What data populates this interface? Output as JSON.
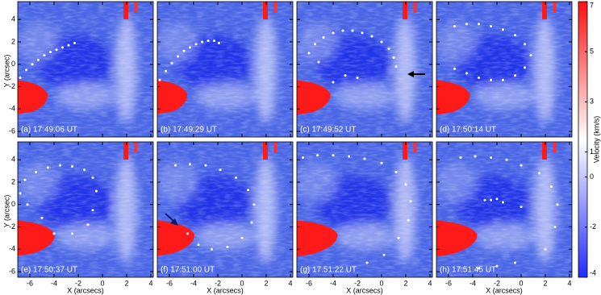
{
  "chart_data": {
    "type": "image",
    "x_label": "X (arcsecs)",
    "y_label": "Y (arcsec)",
    "xlim": [
      -7,
      4.2
    ],
    "ylim": [
      -6.5,
      5.6
    ],
    "xticks": [
      -6,
      -4,
      -2,
      0,
      2,
      4
    ],
    "yticks": [
      -6,
      -4,
      -2,
      0,
      2,
      4
    ],
    "dot_color": "#ffffff",
    "colorbar": {
      "label": "Velocity (km/s)",
      "lim": [
        -4,
        7
      ],
      "ticks": [
        -4,
        -2,
        0,
        1,
        3,
        5,
        7
      ],
      "colors": [
        "#1f2bff",
        "#ffffff",
        "#ff1010"
      ]
    },
    "panels": [
      {
        "label": "(a) 17:49:06 UT",
        "x": [
          -6.8,
          -6.3,
          -5.8,
          -5.3,
          -4.8,
          -4.3,
          -3.8,
          -3.3,
          -2.8,
          -2.3
        ],
        "y": [
          -1.2,
          -0.5,
          0,
          0.4,
          0.8,
          1.1,
          1.3,
          1.5,
          1.7,
          1.9
        ]
      },
      {
        "label": "(b) 17:49:29 UT",
        "x": [
          -6.8,
          -6.3,
          -5.8,
          -5.3,
          -4.8,
          -4.3,
          -3.8,
          -3.3,
          -2.8,
          -2.3,
          -1.9
        ],
        "y": [
          -1.4,
          -0.6,
          0.1,
          0.7,
          1.2,
          1.5,
          1.8,
          2.0,
          2.1,
          2.1,
          1.9
        ]
      },
      {
        "label": "(c) 17:49:52 UT",
        "x": [
          -6,
          -5.5,
          -4.8,
          -4,
          -3.2,
          -2.4,
          -1.6,
          -0.8,
          0,
          0.6,
          1.0,
          1.2,
          -5.2,
          -4,
          -3,
          -2
        ],
        "y": [
          1.0,
          1.8,
          2.4,
          2.8,
          3.0,
          3.0,
          2.8,
          2.5,
          2.0,
          1.4,
          0.6,
          -0.2,
          0.2,
          -1.6,
          -1.0,
          -1.2
        ]
      },
      {
        "label": "(d) 17:50:14 UT",
        "x": [
          -5.5,
          -4.5,
          -3.5,
          -2.5,
          -1.5,
          -0.5,
          0.3,
          0.8,
          0.3,
          -0.5,
          -1.5,
          -2.5,
          -3.5,
          -4.5,
          -5.5
        ],
        "y": [
          3.4,
          3.6,
          3.6,
          3.4,
          3.1,
          2.6,
          1.8,
          0.8,
          -0.3,
          -1.0,
          -1.4,
          -1.4,
          -1.2,
          -0.8,
          -0.4
        ]
      },
      {
        "label": "(e) 17:50:37 UT",
        "x": [
          -6.8,
          -6.4,
          -5.5,
          -4.5,
          -3.5,
          -2.5,
          -1.5,
          -0.8,
          -0.5,
          -0.8,
          -1.2,
          -2.5,
          -4.0,
          -5.0,
          -6.2
        ],
        "y": [
          1,
          2.2,
          2.9,
          3.3,
          3.5,
          3.4,
          3.1,
          2.4,
          1.2,
          -0.5,
          -1.8,
          -2.6,
          -2.6,
          -1.2,
          0.0
        ]
      },
      {
        "label": "(f) 17:51:00 UT",
        "x": [
          -5.5,
          -4.3,
          -3.0,
          -1.8,
          -0.5,
          0.5,
          1.0,
          0.8,
          0,
          -1.2,
          -2.5,
          -3.6,
          -4.5
        ],
        "y": [
          3.5,
          3.6,
          3.5,
          3.1,
          2.4,
          1.3,
          0,
          -1.6,
          -3,
          -3.8,
          -4.0,
          -3.6,
          -2.6
        ]
      },
      {
        "label": "(g) 17:51:22 UT",
        "x": [
          -6.5,
          -5.3,
          -4,
          -2.7,
          -1.4,
          0,
          1.2,
          2.0,
          2.4,
          2.2,
          1.4,
          0.2,
          -1.2
        ],
        "y": [
          4.2,
          4.4,
          4.4,
          4.3,
          4.1,
          3.7,
          2.9,
          1.8,
          0.3,
          -1.4,
          -3.0,
          -4.5,
          -5.2
        ]
      },
      {
        "label": "(h) 17:51:45 UT",
        "x": [
          -5,
          -3.8,
          -2.5,
          -1.2,
          0,
          1.5,
          2.5,
          3.0,
          2.8,
          2.0,
          -0.5,
          -2,
          -3.5,
          -3,
          -2.5,
          -2,
          -1.5,
          0
        ],
        "y": [
          4.2,
          4.3,
          4.2,
          4.0,
          3.5,
          2.8,
          1.6,
          0,
          -2,
          -4,
          -5.2,
          -5.5,
          -5.7,
          0.4,
          0.4,
          0.5,
          0.2,
          -0.2
        ]
      }
    ]
  }
}
